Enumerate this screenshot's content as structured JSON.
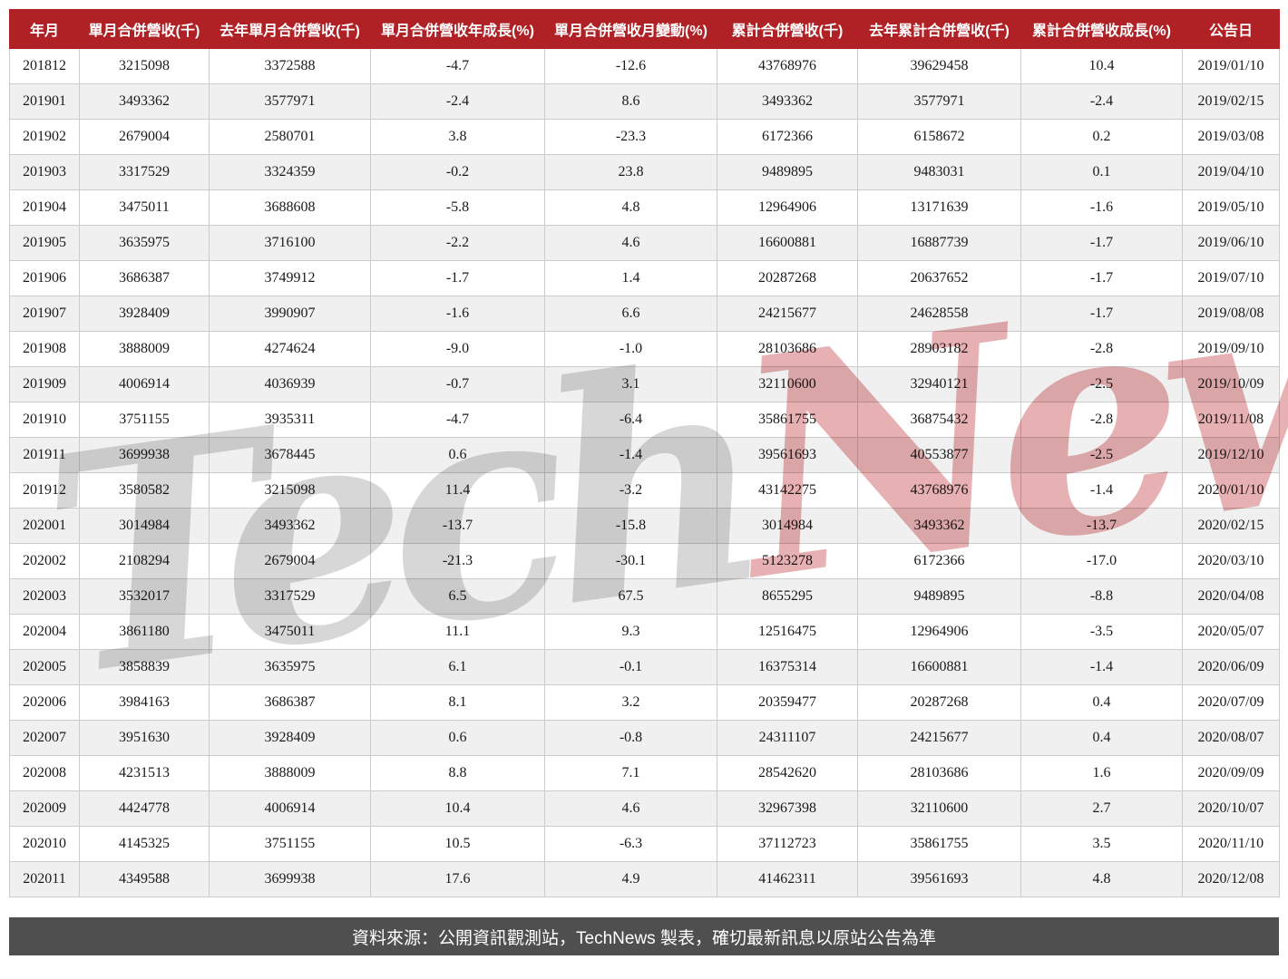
{
  "chart_data": {
    "type": "table",
    "columns": [
      "年月",
      "單月合併營收(千)",
      "去年單月合併營收(千)",
      "單月合併營收年成長(%)",
      "單月合併營收月變動(%)",
      "累計合併營收(千)",
      "去年累計合併營收(千)",
      "累計合併營收成長(%)",
      "公告日"
    ],
    "rows": [
      [
        "201812",
        "3215098",
        "3372588",
        "-4.7",
        "-12.6",
        "43768976",
        "39629458",
        "10.4",
        "2019/01/10"
      ],
      [
        "201901",
        "3493362",
        "3577971",
        "-2.4",
        "8.6",
        "3493362",
        "3577971",
        "-2.4",
        "2019/02/15"
      ],
      [
        "201902",
        "2679004",
        "2580701",
        "3.8",
        "-23.3",
        "6172366",
        "6158672",
        "0.2",
        "2019/03/08"
      ],
      [
        "201903",
        "3317529",
        "3324359",
        "-0.2",
        "23.8",
        "9489895",
        "9483031",
        "0.1",
        "2019/04/10"
      ],
      [
        "201904",
        "3475011",
        "3688608",
        "-5.8",
        "4.8",
        "12964906",
        "13171639",
        "-1.6",
        "2019/05/10"
      ],
      [
        "201905",
        "3635975",
        "3716100",
        "-2.2",
        "4.6",
        "16600881",
        "16887739",
        "-1.7",
        "2019/06/10"
      ],
      [
        "201906",
        "3686387",
        "3749912",
        "-1.7",
        "1.4",
        "20287268",
        "20637652",
        "-1.7",
        "2019/07/10"
      ],
      [
        "201907",
        "3928409",
        "3990907",
        "-1.6",
        "6.6",
        "24215677",
        "24628558",
        "-1.7",
        "2019/08/08"
      ],
      [
        "201908",
        "3888009",
        "4274624",
        "-9.0",
        "-1.0",
        "28103686",
        "28903182",
        "-2.8",
        "2019/09/10"
      ],
      [
        "201909",
        "4006914",
        "4036939",
        "-0.7",
        "3.1",
        "32110600",
        "32940121",
        "-2.5",
        "2019/10/09"
      ],
      [
        "201910",
        "3751155",
        "3935311",
        "-4.7",
        "-6.4",
        "35861755",
        "36875432",
        "-2.8",
        "2019/11/08"
      ],
      [
        "201911",
        "3699938",
        "3678445",
        "0.6",
        "-1.4",
        "39561693",
        "40553877",
        "-2.5",
        "2019/12/10"
      ],
      [
        "201912",
        "3580582",
        "3215098",
        "11.4",
        "-3.2",
        "43142275",
        "43768976",
        "-1.4",
        "2020/01/10"
      ],
      [
        "202001",
        "3014984",
        "3493362",
        "-13.7",
        "-15.8",
        "3014984",
        "3493362",
        "-13.7",
        "2020/02/15"
      ],
      [
        "202002",
        "2108294",
        "2679004",
        "-21.3",
        "-30.1",
        "5123278",
        "6172366",
        "-17.0",
        "2020/03/10"
      ],
      [
        "202003",
        "3532017",
        "3317529",
        "6.5",
        "67.5",
        "8655295",
        "9489895",
        "-8.8",
        "2020/04/08"
      ],
      [
        "202004",
        "3861180",
        "3475011",
        "11.1",
        "9.3",
        "12516475",
        "12964906",
        "-3.5",
        "2020/05/07"
      ],
      [
        "202005",
        "3858839",
        "3635975",
        "6.1",
        "-0.1",
        "16375314",
        "16600881",
        "-1.4",
        "2020/06/09"
      ],
      [
        "202006",
        "3984163",
        "3686387",
        "8.1",
        "3.2",
        "20359477",
        "20287268",
        "0.4",
        "2020/07/09"
      ],
      [
        "202007",
        "3951630",
        "3928409",
        "0.6",
        "-0.8",
        "24311107",
        "24215677",
        "0.4",
        "2020/08/07"
      ],
      [
        "202008",
        "4231513",
        "3888009",
        "8.8",
        "7.1",
        "28542620",
        "28103686",
        "1.6",
        "2020/09/09"
      ],
      [
        "202009",
        "4424778",
        "4006914",
        "10.4",
        "4.6",
        "32967398",
        "32110600",
        "2.7",
        "2020/10/07"
      ],
      [
        "202010",
        "4145325",
        "3751155",
        "10.5",
        "-6.3",
        "37112723",
        "35861755",
        "3.5",
        "2020/11/10"
      ],
      [
        "202011",
        "4349588",
        "3699938",
        "17.6",
        "4.9",
        "41462311",
        "39561693",
        "4.8",
        "2020/12/08"
      ]
    ]
  },
  "watermark": {
    "part1": "Tech",
    "part2": "News"
  },
  "footer": {
    "text": "資料來源：公開資訊觀測站，TechNews 製表，確切最新訊息以原站公告為準"
  },
  "colors": {
    "header_bg": "#b02126",
    "header_text": "#ffffff",
    "row_stripe": "#f0f0f0",
    "row_white": "#ffffff",
    "table_border": "#cccccc",
    "cell_text": "#1a1a1a",
    "footer_bg": "#4f4f4f",
    "footer_text": "#ffffff",
    "watermark_gray": "#d7d7d7",
    "watermark_red": "#e7b0b2"
  }
}
